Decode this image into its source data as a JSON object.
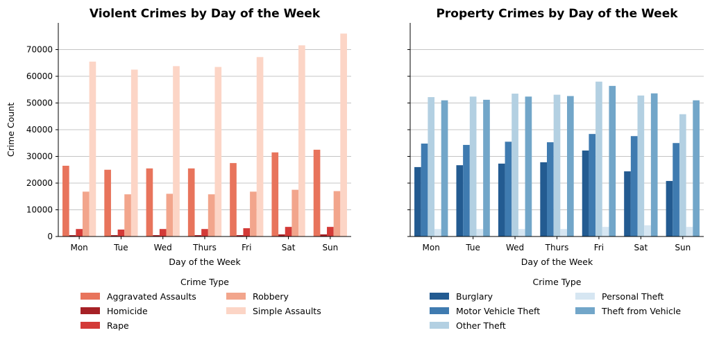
{
  "chart_data": [
    {
      "type": "bar",
      "title": "Violent Crimes by Day of the Week",
      "xlabel": "Day of the Week",
      "ylabel": "Crime Count",
      "ylim": [
        0,
        80000
      ],
      "yticks": [
        0,
        10000,
        20000,
        30000,
        40000,
        50000,
        60000,
        70000
      ],
      "grid": "horizontal",
      "categories": [
        "Mon",
        "Tue",
        "Wed",
        "Thurs",
        "Fri",
        "Sat",
        "Sun"
      ],
      "legend": {
        "title": "Crime Type",
        "placement": "bottom",
        "columns": 2
      },
      "series": [
        {
          "name": "Aggravated Assaults",
          "color": "#e8745c",
          "values": [
            26500,
            25000,
            25500,
            25500,
            27500,
            31500,
            32500
          ]
        },
        {
          "name": "Homicide",
          "color": "#a62126",
          "values": [
            500,
            500,
            500,
            500,
            500,
            800,
            800
          ]
        },
        {
          "name": "Rape",
          "color": "#d33a37",
          "values": [
            2800,
            2600,
            2800,
            2800,
            3100,
            3600,
            3600
          ]
        },
        {
          "name": "Robbery",
          "color": "#f2a58c",
          "values": [
            16800,
            15800,
            16000,
            15800,
            16800,
            17500,
            17000
          ]
        },
        {
          "name": "Simple Assaults",
          "color": "#fcd5c6",
          "values": [
            65500,
            62500,
            63800,
            63500,
            67200,
            71600,
            76000
          ]
        }
      ]
    },
    {
      "type": "bar",
      "title": "Property Crimes by Day of the Week",
      "xlabel": "Day of the Week",
      "ylabel": "",
      "ylim": [
        0,
        80000
      ],
      "yticks": [
        0,
        10000,
        20000,
        30000,
        40000,
        50000,
        60000,
        70000
      ],
      "grid": "horizontal",
      "categories": [
        "Mon",
        "Tue",
        "Wed",
        "Thurs",
        "Fri",
        "Sat",
        "Sun"
      ],
      "legend": {
        "title": "Crime Type",
        "placement": "bottom",
        "columns": 2
      },
      "series": [
        {
          "name": "Burglary",
          "color": "#235b91",
          "values": [
            26000,
            26700,
            27300,
            27800,
            32200,
            24400,
            20800
          ]
        },
        {
          "name": "Motor Vehicle Theft",
          "color": "#3f7bb0",
          "values": [
            34800,
            34300,
            35500,
            35300,
            38400,
            37600,
            35000
          ]
        },
        {
          "name": "Other Theft",
          "color": "#b3d0e2",
          "values": [
            52200,
            52400,
            53500,
            53100,
            58000,
            52800,
            45800
          ]
        },
        {
          "name": "Personal Theft",
          "color": "#d6e6f2",
          "values": [
            2800,
            2800,
            2800,
            2800,
            3600,
            4200,
            3600
          ]
        },
        {
          "name": "Theft from Vehicle",
          "color": "#72a6c9",
          "values": [
            51000,
            51200,
            52400,
            52600,
            56400,
            53600,
            51000
          ]
        }
      ]
    }
  ]
}
